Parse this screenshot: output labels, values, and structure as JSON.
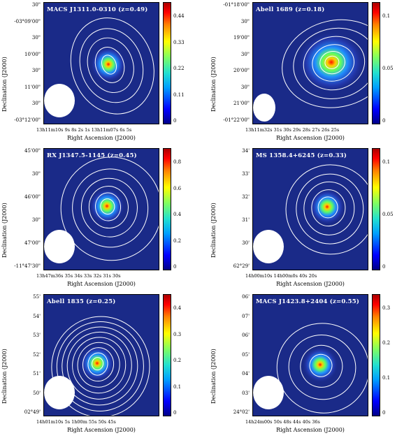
{
  "panels": [
    {
      "label": "MACS J1311.0-0310 (z=0.49)",
      "ylabel": "Declination (J2000)",
      "xlabel": "Right Ascension (J2000)",
      "yticks": [
        "30\"",
        "-03°09'00\"",
        "30\"",
        "10'00\"",
        "30\"",
        "11'00\"",
        "30\"",
        "-03°12'00\""
      ],
      "xticks": "13h11m10s  9s  8s  2s  1s  13h11m07s  6s  5s",
      "cticks": [
        "0.44",
        "0.33",
        "0.22",
        "0.11",
        "0"
      ]
    },
    {
      "label": "Abell 1689 (z=0.18)",
      "ylabel": "Declination (J2000)",
      "xlabel": "Right Ascension (J2000)",
      "yticks": [
        "-01°18'00\"",
        "30\"",
        "19'00\"",
        "30\"",
        "20'00\"",
        "30\"",
        "21'00\"",
        "-01°22'00\""
      ],
      "xticks": "13h11m32s  31s  30s  29s  28s  27s  26s  25s",
      "cticks": [
        "0.1",
        "0.05",
        "0"
      ]
    },
    {
      "label": "RX J1347.5-1145 (z=0.45)",
      "ylabel": "Declination (J2000)",
      "xlabel": "Right Ascension (J2000)",
      "yticks": [
        "45'00\"",
        "30\"",
        "46'00\"",
        "30\"",
        "47'00\"",
        "-11°47'30\""
      ],
      "xticks": "13h47m36s  35s  34s  33s  32s  31s  30s",
      "cticks": [
        "0.8",
        "0.6",
        "0.4",
        "0.2",
        "0"
      ]
    },
    {
      "label": "MS 1358.4+6245 (z=0.33)",
      "ylabel": "Declination (J2000)",
      "xlabel": "Right Ascension (J2000)",
      "yticks": [
        "34'",
        "33'",
        "32'",
        "31'",
        "30'",
        "62°29'"
      ],
      "xticks": "14h00m10s  14h00m0s  40s  20s",
      "cticks": [
        "0.1",
        "0.05",
        "0"
      ]
    },
    {
      "label": "Abell 1835 (z=0.25)",
      "ylabel": "Declination (J2000)",
      "xlabel": "Right Ascension (J2000)",
      "yticks": [
        "55'",
        "54'",
        "53'",
        "52'",
        "51'",
        "50'",
        "02°49'"
      ],
      "xticks": "14h01m10s  5s  1h00m  55s  50s  45s",
      "cticks": [
        "0.4",
        "0.3",
        "0.2",
        "0.1",
        "0"
      ]
    },
    {
      "label": "MACS J1423.8+2404 (z=0.55)",
      "ylabel": "Declination (J2000)",
      "xlabel": "Right Ascension (J2000)",
      "yticks": [
        "06'",
        "07'",
        "06'",
        "05'",
        "04'",
        "03'",
        "24°02'"
      ],
      "xticks": "14h24m00s  50s  48s  44s  40s  36s",
      "cticks": [
        "0.3",
        "0.2",
        "0.1",
        "0"
      ]
    }
  ],
  "colors": {
    "background_map": "#1a2a88",
    "contour": "#ffffff",
    "peak": "#ff2000"
  }
}
